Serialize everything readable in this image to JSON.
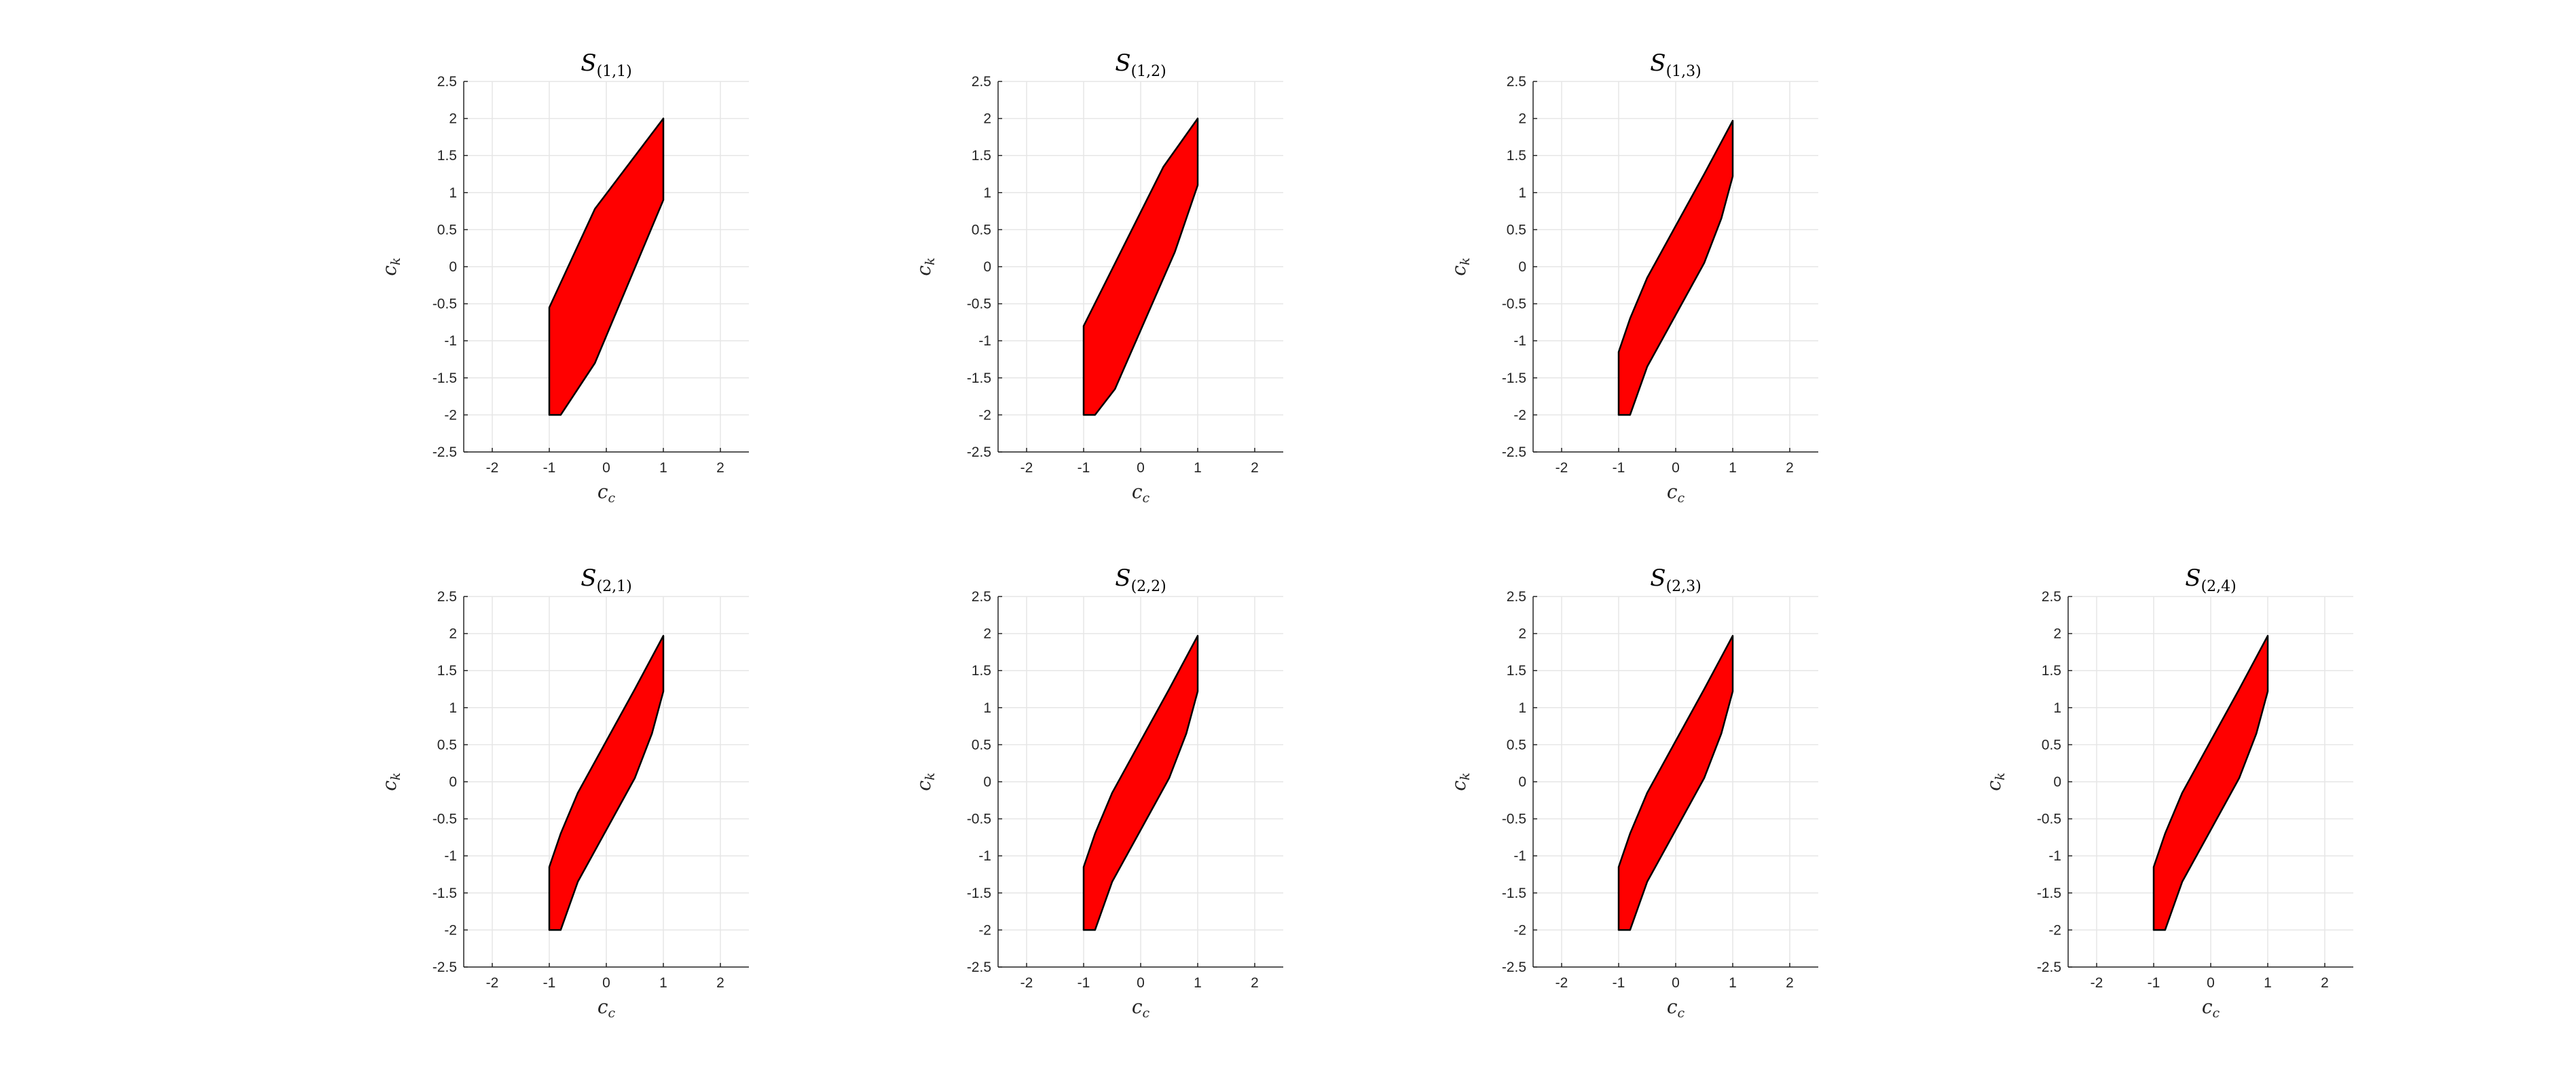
{
  "chart_data": [
    {
      "type": "area",
      "title": "S",
      "title_subscript": "(1,1)",
      "xlabel": "c",
      "xlabel_sub": "c",
      "ylabel": "c",
      "ylabel_sub": "k",
      "xlim": [
        -2.5,
        2.5
      ],
      "ylim": [
        -2.5,
        2.5
      ],
      "xticks": [
        "-2",
        "-1",
        "0",
        "1",
        "2"
      ],
      "yticks": [
        "2.5",
        "2",
        "1.5",
        "1",
        "0.5",
        "0",
        "-0.5",
        "-1",
        "-1.5",
        "-2",
        "-2.5"
      ],
      "grid": true,
      "fill_color": "#ff0000",
      "polygon": [
        [
          -1,
          -0.55
        ],
        [
          -0.2,
          0.78
        ],
        [
          1,
          2
        ],
        [
          1,
          0.9
        ],
        [
          -0.2,
          -1.3
        ],
        [
          -0.8,
          -2
        ],
        [
          -1,
          -2
        ]
      ]
    },
    {
      "type": "area",
      "title": "S",
      "title_subscript": "(1,2)",
      "xlabel": "c",
      "xlabel_sub": "c",
      "ylabel": "c",
      "ylabel_sub": "k",
      "xlim": [
        -2.5,
        2.5
      ],
      "ylim": [
        -2.5,
        2.5
      ],
      "xticks": [
        "-2",
        "-1",
        "0",
        "1",
        "2"
      ],
      "yticks": [
        "2.5",
        "2",
        "1.5",
        "1",
        "0.5",
        "0",
        "-0.5",
        "-1",
        "-1.5",
        "-2",
        "-2.5"
      ],
      "grid": true,
      "fill_color": "#ff0000",
      "polygon": [
        [
          -1,
          -0.8
        ],
        [
          0.4,
          1.35
        ],
        [
          1,
          2
        ],
        [
          1,
          1.1
        ],
        [
          0.6,
          0.2
        ],
        [
          -0.45,
          -1.65
        ],
        [
          -0.8,
          -2
        ],
        [
          -1,
          -2
        ]
      ]
    },
    {
      "type": "area",
      "title": "S",
      "title_subscript": "(1,3)",
      "xlabel": "c",
      "xlabel_sub": "c",
      "ylabel": "c",
      "ylabel_sub": "k",
      "xlim": [
        -2.5,
        2.5
      ],
      "ylim": [
        -2.5,
        2.5
      ],
      "xticks": [
        "-2",
        "-1",
        "0",
        "1",
        "2"
      ],
      "yticks": [
        "2.5",
        "2",
        "1.5",
        "1",
        "0.5",
        "0",
        "-0.5",
        "-1",
        "-1.5",
        "-2",
        "-2.5"
      ],
      "grid": true,
      "fill_color": "#ff0000",
      "polygon": [
        [
          -1,
          -1.15
        ],
        [
          -0.8,
          -0.7
        ],
        [
          -0.5,
          -0.15
        ],
        [
          0,
          0.55
        ],
        [
          0.5,
          1.25
        ],
        [
          1,
          1.97
        ],
        [
          1,
          1.22
        ],
        [
          0.8,
          0.65
        ],
        [
          0.5,
          0.05
        ],
        [
          0,
          -0.65
        ],
        [
          -0.5,
          -1.35
        ],
        [
          -0.8,
          -2
        ],
        [
          -1,
          -2
        ]
      ]
    },
    {
      "type": "area",
      "title": "S",
      "title_subscript": "(2,1)",
      "xlabel": "c",
      "xlabel_sub": "c",
      "ylabel": "c",
      "ylabel_sub": "k",
      "xlim": [
        -2.5,
        2.5
      ],
      "ylim": [
        -2.5,
        2.5
      ],
      "xticks": [
        "-2",
        "-1",
        "0",
        "1",
        "2"
      ],
      "yticks": [
        "2.5",
        "2",
        "1.5",
        "1",
        "0.5",
        "0",
        "-0.5",
        "-1",
        "-1.5",
        "-2",
        "-2.5"
      ],
      "grid": true,
      "fill_color": "#ff0000",
      "polygon": [
        [
          -1,
          -1.15
        ],
        [
          -0.8,
          -0.7
        ],
        [
          -0.5,
          -0.15
        ],
        [
          0,
          0.55
        ],
        [
          0.5,
          1.25
        ],
        [
          1,
          1.97
        ],
        [
          1,
          1.22
        ],
        [
          0.8,
          0.65
        ],
        [
          0.5,
          0.05
        ],
        [
          0,
          -0.65
        ],
        [
          -0.5,
          -1.35
        ],
        [
          -0.8,
          -2
        ],
        [
          -1,
          -2
        ]
      ]
    },
    {
      "type": "area",
      "title": "S",
      "title_subscript": "(2,2)",
      "xlabel": "c",
      "xlabel_sub": "c",
      "ylabel": "c",
      "ylabel_sub": "k",
      "xlim": [
        -2.5,
        2.5
      ],
      "ylim": [
        -2.5,
        2.5
      ],
      "xticks": [
        "-2",
        "-1",
        "0",
        "1",
        "2"
      ],
      "yticks": [
        "2.5",
        "2",
        "1.5",
        "1",
        "0.5",
        "0",
        "-0.5",
        "-1",
        "-1.5",
        "-2",
        "-2.5"
      ],
      "grid": true,
      "fill_color": "#ff0000",
      "polygon": [
        [
          -1,
          -1.15
        ],
        [
          -0.8,
          -0.7
        ],
        [
          -0.5,
          -0.15
        ],
        [
          0,
          0.55
        ],
        [
          0.5,
          1.25
        ],
        [
          1,
          1.97
        ],
        [
          1,
          1.22
        ],
        [
          0.8,
          0.65
        ],
        [
          0.5,
          0.05
        ],
        [
          0,
          -0.65
        ],
        [
          -0.5,
          -1.35
        ],
        [
          -0.8,
          -2
        ],
        [
          -1,
          -2
        ]
      ]
    },
    {
      "type": "area",
      "title": "S",
      "title_subscript": "(2,3)",
      "xlabel": "c",
      "xlabel_sub": "c",
      "ylabel": "c",
      "ylabel_sub": "k",
      "xlim": [
        -2.5,
        2.5
      ],
      "ylim": [
        -2.5,
        2.5
      ],
      "xticks": [
        "-2",
        "-1",
        "0",
        "1",
        "2"
      ],
      "yticks": [
        "2.5",
        "2",
        "1.5",
        "1",
        "0.5",
        "0",
        "-0.5",
        "-1",
        "-1.5",
        "-2",
        "-2.5"
      ],
      "grid": true,
      "fill_color": "#ff0000",
      "polygon": [
        [
          -1,
          -1.15
        ],
        [
          -0.8,
          -0.7
        ],
        [
          -0.5,
          -0.15
        ],
        [
          0,
          0.55
        ],
        [
          0.5,
          1.25
        ],
        [
          1,
          1.97
        ],
        [
          1,
          1.22
        ],
        [
          0.8,
          0.65
        ],
        [
          0.5,
          0.05
        ],
        [
          0,
          -0.65
        ],
        [
          -0.5,
          -1.35
        ],
        [
          -0.8,
          -2
        ],
        [
          -1,
          -2
        ]
      ]
    },
    {
      "type": "area",
      "title": "S",
      "title_subscript": "(2,4)",
      "xlabel": "c",
      "xlabel_sub": "c",
      "ylabel": "c",
      "ylabel_sub": "k",
      "xlim": [
        -2.5,
        2.5
      ],
      "ylim": [
        -2.5,
        2.5
      ],
      "xticks": [
        "-2",
        "-1",
        "0",
        "1",
        "2"
      ],
      "yticks": [
        "2.5",
        "2",
        "1.5",
        "1",
        "0.5",
        "0",
        "-0.5",
        "-1",
        "-1.5",
        "-2",
        "-2.5"
      ],
      "grid": true,
      "fill_color": "#ff0000",
      "polygon": [
        [
          -1,
          -1.15
        ],
        [
          -0.8,
          -0.7
        ],
        [
          -0.5,
          -0.15
        ],
        [
          0,
          0.55
        ],
        [
          0.5,
          1.25
        ],
        [
          1,
          1.97
        ],
        [
          1,
          1.22
        ],
        [
          0.8,
          0.65
        ],
        [
          0.5,
          0.05
        ],
        [
          0,
          -0.65
        ],
        [
          -0.5,
          -1.35
        ],
        [
          -0.8,
          -2
        ],
        [
          -1,
          -2
        ]
      ]
    }
  ]
}
